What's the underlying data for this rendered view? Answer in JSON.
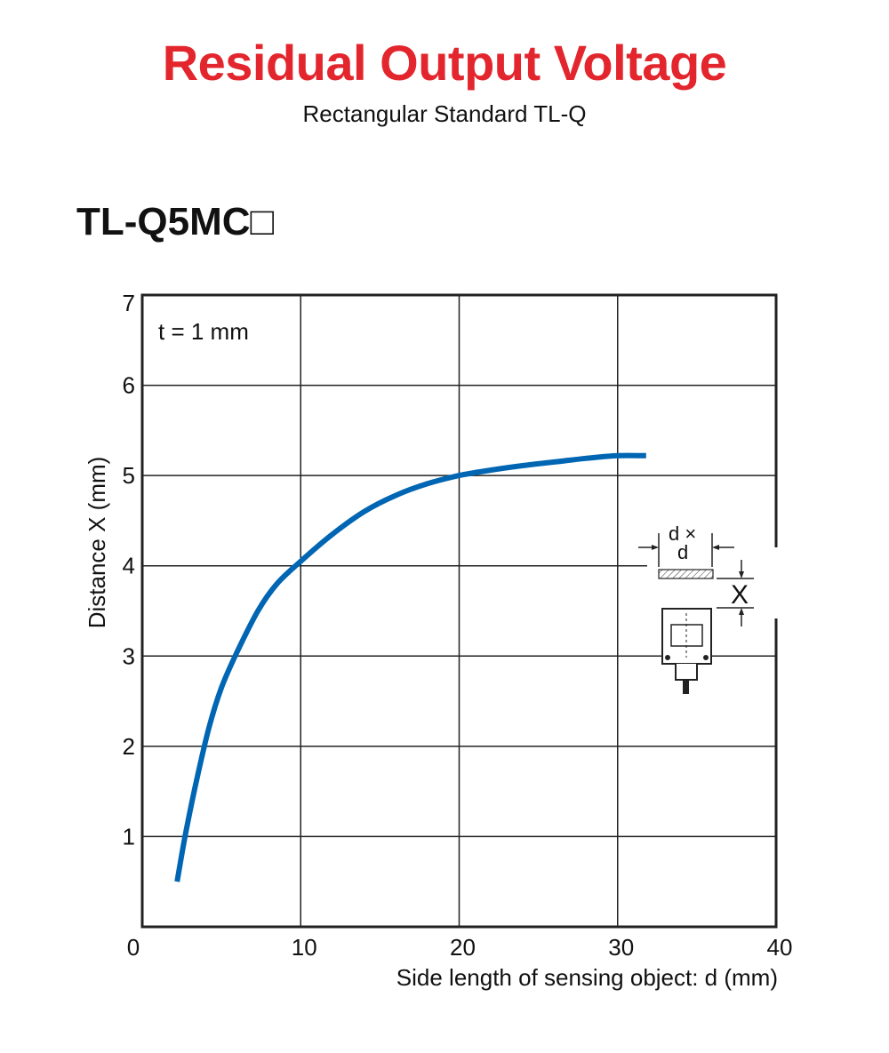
{
  "header": {
    "title": "Residual Output Voltage",
    "subtitle": "Rectangular Standard TL-Q",
    "model": "TL-Q5MC□"
  },
  "colors": {
    "title": "#e3262d",
    "curve": "#0066b3",
    "grid": "#222222"
  },
  "chart_data": {
    "type": "line",
    "xlabel": "Side length of sensing object: d (mm)",
    "ylabel": "Distance X (mm)",
    "xlim": [
      0,
      40
    ],
    "ylim": [
      0,
      7
    ],
    "xticks": [
      0,
      10,
      20,
      30,
      40
    ],
    "yticks": [
      1,
      2,
      3,
      4,
      5,
      6,
      7
    ],
    "grid": true,
    "annotation": "t = 1 mm",
    "series": [
      {
        "name": "",
        "x": [
          2.2,
          2.7,
          3.4,
          4.2,
          5.0,
          6.0,
          7.3,
          8.5,
          10.0,
          12.0,
          14.0,
          16.0,
          18.0,
          20.0,
          22.0,
          24.0,
          26.0,
          28.0,
          30.0,
          31.8
        ],
        "y": [
          0.5,
          1.0,
          1.6,
          2.2,
          2.65,
          3.05,
          3.5,
          3.8,
          4.05,
          4.35,
          4.6,
          4.78,
          4.91,
          5.0,
          5.06,
          5.11,
          5.15,
          5.19,
          5.22,
          5.22
        ]
      }
    ],
    "inset_labels": {
      "dimension": "d ×",
      "dimension2": "d",
      "distance": "X"
    }
  }
}
